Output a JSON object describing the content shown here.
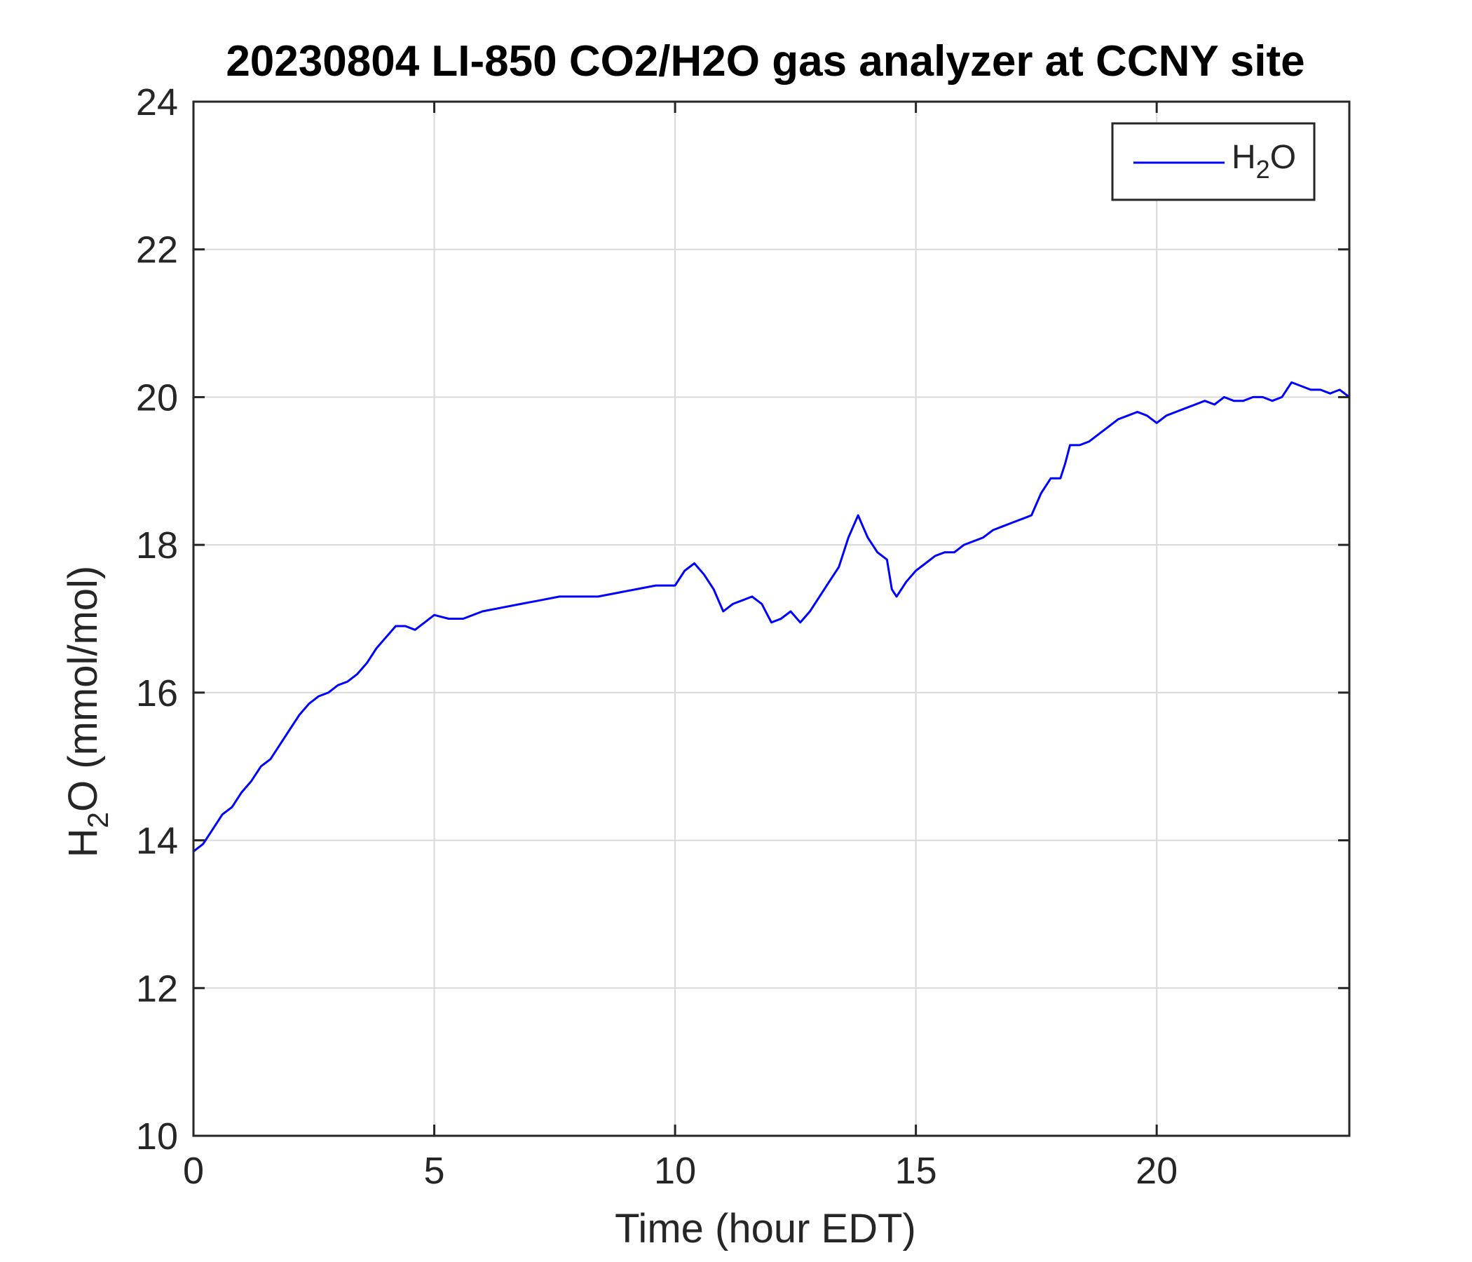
{
  "chart_data": {
    "type": "line",
    "title": "20230804 LI-850 CO2/H2O gas analyzer at CCNY site",
    "xlabel": "Time (hour EDT)",
    "ylabel_main": "H",
    "ylabel_sub": "2",
    "ylabel_rest": "O (mmol/mol)",
    "xlim": [
      0,
      24
    ],
    "ylim": [
      10,
      24
    ],
    "xticks": [
      0,
      5,
      10,
      15,
      20
    ],
    "yticks": [
      10,
      12,
      14,
      16,
      18,
      20,
      22,
      24
    ],
    "grid": true,
    "legend_position": "top-right",
    "series": [
      {
        "name": "H2O",
        "legend_main": "H",
        "legend_sub": "2",
        "legend_rest": "O",
        "color": "#0000ff",
        "x": [
          0,
          0.2,
          0.4,
          0.6,
          0.8,
          1.0,
          1.2,
          1.4,
          1.6,
          1.8,
          2.0,
          2.2,
          2.4,
          2.6,
          2.8,
          3.0,
          3.2,
          3.4,
          3.6,
          3.8,
          4.0,
          4.2,
          4.4,
          4.6,
          4.8,
          5.0,
          5.3,
          5.6,
          6.0,
          6.4,
          6.8,
          7.2,
          7.6,
          8.0,
          8.4,
          8.8,
          9.2,
          9.6,
          10.0,
          10.2,
          10.4,
          10.6,
          10.8,
          11.0,
          11.2,
          11.4,
          11.6,
          11.8,
          12.0,
          12.2,
          12.4,
          12.6,
          12.8,
          13.0,
          13.2,
          13.4,
          13.6,
          13.8,
          13.9,
          14.0,
          14.2,
          14.4,
          14.5,
          14.6,
          14.8,
          15.0,
          15.2,
          15.4,
          15.6,
          15.8,
          16.0,
          16.2,
          16.4,
          16.6,
          16.8,
          17.0,
          17.2,
          17.4,
          17.6,
          17.8,
          18.0,
          18.1,
          18.2,
          18.4,
          18.6,
          18.8,
          19.0,
          19.2,
          19.4,
          19.6,
          19.8,
          20.0,
          20.2,
          20.4,
          20.6,
          20.8,
          21.0,
          21.2,
          21.4,
          21.6,
          21.8,
          22.0,
          22.2,
          22.4,
          22.6,
          22.8,
          23.0,
          23.2,
          23.4,
          23.6,
          23.8,
          24.0
        ],
        "y": [
          13.85,
          13.95,
          14.15,
          14.35,
          14.45,
          14.65,
          14.8,
          15.0,
          15.1,
          15.3,
          15.5,
          15.7,
          15.85,
          15.95,
          16.0,
          16.1,
          16.15,
          16.25,
          16.4,
          16.6,
          16.75,
          16.9,
          16.9,
          16.85,
          16.95,
          17.05,
          17.0,
          17.0,
          17.1,
          17.15,
          17.2,
          17.25,
          17.3,
          17.3,
          17.3,
          17.35,
          17.4,
          17.45,
          17.45,
          17.65,
          17.75,
          17.6,
          17.4,
          17.1,
          17.2,
          17.25,
          17.3,
          17.2,
          16.95,
          17.0,
          17.1,
          16.95,
          17.1,
          17.3,
          17.5,
          17.7,
          18.1,
          18.4,
          18.25,
          18.1,
          17.9,
          17.8,
          17.4,
          17.3,
          17.5,
          17.65,
          17.75,
          17.85,
          17.9,
          17.9,
          18.0,
          18.05,
          18.1,
          18.2,
          18.25,
          18.3,
          18.35,
          18.4,
          18.7,
          18.9,
          18.9,
          19.1,
          19.35,
          19.35,
          19.4,
          19.5,
          19.6,
          19.7,
          19.75,
          19.8,
          19.75,
          19.65,
          19.75,
          19.8,
          19.85,
          19.9,
          19.95,
          19.9,
          20.0,
          19.95,
          19.95,
          20.0,
          20.0,
          19.95,
          20.0,
          20.2,
          20.15,
          20.1,
          20.1,
          20.05,
          20.1,
          20.0
        ]
      }
    ]
  }
}
